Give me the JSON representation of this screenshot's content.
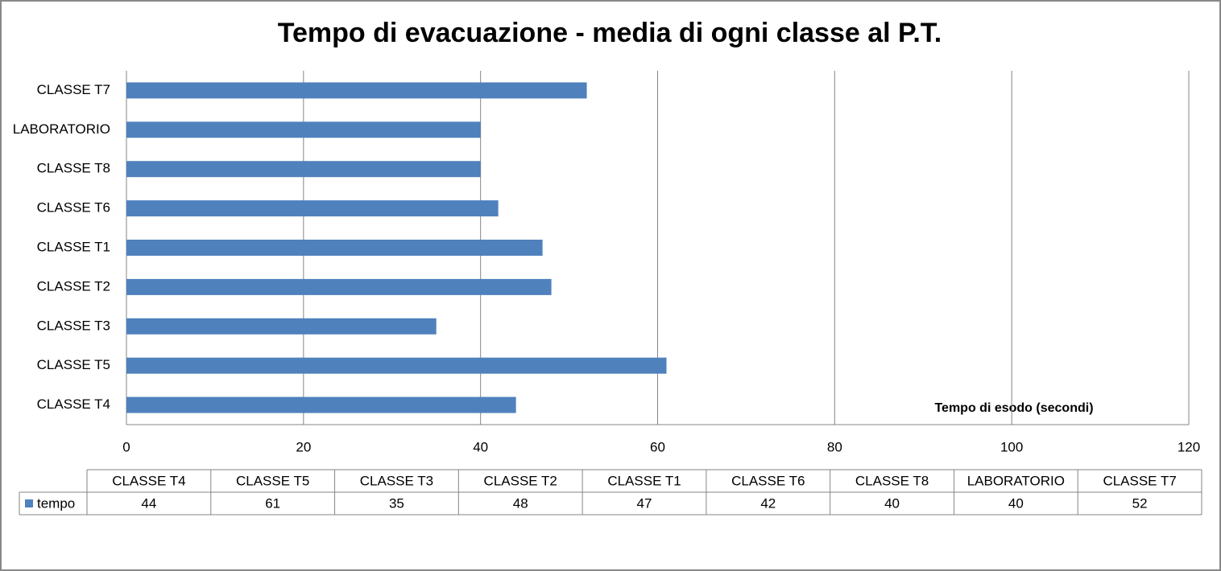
{
  "chart_data": {
    "type": "bar",
    "orientation": "horizontal",
    "title": "Tempo di evacuazione - media di ogni classe al P.T.",
    "x_label": "Tempo di esodo (secondi)",
    "categories": [
      "CLASSE T4",
      "CLASSE T5",
      "CLASSE T3",
      "CLASSE T2",
      "CLASSE T1",
      "CLASSE T6",
      "CLASSE T8",
      "LABORATORIO",
      "CLASSE T7"
    ],
    "series": [
      {
        "name": "tempo",
        "color": "#4f81bd",
        "values": [
          44,
          61,
          35,
          48,
          47,
          42,
          40,
          40,
          52
        ]
      }
    ],
    "xlim": [
      0,
      120
    ],
    "xticks": [
      0,
      20,
      40,
      60,
      80,
      100,
      120
    ],
    "grid": true,
    "data_table": true
  }
}
